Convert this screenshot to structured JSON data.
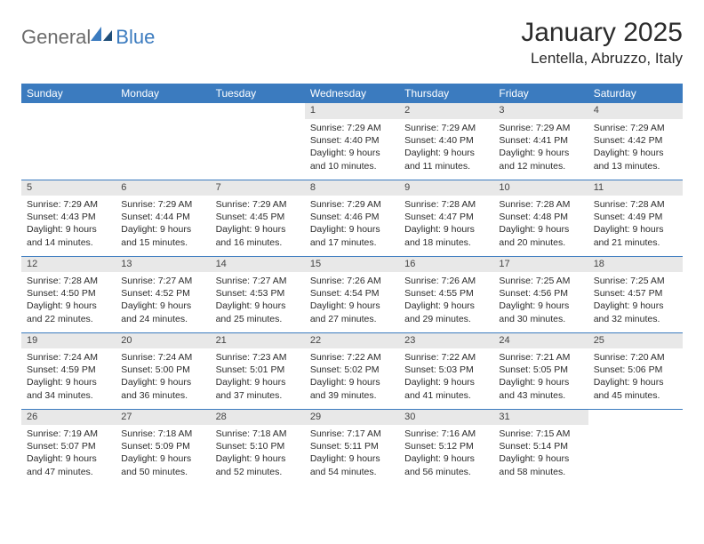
{
  "logo": {
    "text1": "General",
    "text2": "Blue"
  },
  "title": "January 2025",
  "subtitle": "Lentella, Abruzzo, Italy",
  "colors": {
    "header_bg": "#3b7bbf",
    "header_text": "#ffffff",
    "daynum_bg": "#e8e8e8",
    "border": "#3b7bbf",
    "body_text": "#2b2b2b",
    "logo_gray": "#6b6b6b",
    "logo_blue": "#3b7bbf"
  },
  "typography": {
    "title_fontsize": 30,
    "subtitle_fontsize": 17,
    "day_header_fontsize": 12,
    "daynum_fontsize": 11,
    "detail_fontsize": 10.5
  },
  "day_headers": [
    "Sunday",
    "Monday",
    "Tuesday",
    "Wednesday",
    "Thursday",
    "Friday",
    "Saturday"
  ],
  "weeks": [
    {
      "nums": [
        "",
        "",
        "",
        "1",
        "2",
        "3",
        "4"
      ],
      "details": [
        "",
        "",
        "",
        "Sunrise: 7:29 AM\nSunset: 4:40 PM\nDaylight: 9 hours\nand 10 minutes.",
        "Sunrise: 7:29 AM\nSunset: 4:40 PM\nDaylight: 9 hours\nand 11 minutes.",
        "Sunrise: 7:29 AM\nSunset: 4:41 PM\nDaylight: 9 hours\nand 12 minutes.",
        "Sunrise: 7:29 AM\nSunset: 4:42 PM\nDaylight: 9 hours\nand 13 minutes."
      ]
    },
    {
      "nums": [
        "5",
        "6",
        "7",
        "8",
        "9",
        "10",
        "11"
      ],
      "details": [
        "Sunrise: 7:29 AM\nSunset: 4:43 PM\nDaylight: 9 hours\nand 14 minutes.",
        "Sunrise: 7:29 AM\nSunset: 4:44 PM\nDaylight: 9 hours\nand 15 minutes.",
        "Sunrise: 7:29 AM\nSunset: 4:45 PM\nDaylight: 9 hours\nand 16 minutes.",
        "Sunrise: 7:29 AM\nSunset: 4:46 PM\nDaylight: 9 hours\nand 17 minutes.",
        "Sunrise: 7:28 AM\nSunset: 4:47 PM\nDaylight: 9 hours\nand 18 minutes.",
        "Sunrise: 7:28 AM\nSunset: 4:48 PM\nDaylight: 9 hours\nand 20 minutes.",
        "Sunrise: 7:28 AM\nSunset: 4:49 PM\nDaylight: 9 hours\nand 21 minutes."
      ]
    },
    {
      "nums": [
        "12",
        "13",
        "14",
        "15",
        "16",
        "17",
        "18"
      ],
      "details": [
        "Sunrise: 7:28 AM\nSunset: 4:50 PM\nDaylight: 9 hours\nand 22 minutes.",
        "Sunrise: 7:27 AM\nSunset: 4:52 PM\nDaylight: 9 hours\nand 24 minutes.",
        "Sunrise: 7:27 AM\nSunset: 4:53 PM\nDaylight: 9 hours\nand 25 minutes.",
        "Sunrise: 7:26 AM\nSunset: 4:54 PM\nDaylight: 9 hours\nand 27 minutes.",
        "Sunrise: 7:26 AM\nSunset: 4:55 PM\nDaylight: 9 hours\nand 29 minutes.",
        "Sunrise: 7:25 AM\nSunset: 4:56 PM\nDaylight: 9 hours\nand 30 minutes.",
        "Sunrise: 7:25 AM\nSunset: 4:57 PM\nDaylight: 9 hours\nand 32 minutes."
      ]
    },
    {
      "nums": [
        "19",
        "20",
        "21",
        "22",
        "23",
        "24",
        "25"
      ],
      "details": [
        "Sunrise: 7:24 AM\nSunset: 4:59 PM\nDaylight: 9 hours\nand 34 minutes.",
        "Sunrise: 7:24 AM\nSunset: 5:00 PM\nDaylight: 9 hours\nand 36 minutes.",
        "Sunrise: 7:23 AM\nSunset: 5:01 PM\nDaylight: 9 hours\nand 37 minutes.",
        "Sunrise: 7:22 AM\nSunset: 5:02 PM\nDaylight: 9 hours\nand 39 minutes.",
        "Sunrise: 7:22 AM\nSunset: 5:03 PM\nDaylight: 9 hours\nand 41 minutes.",
        "Sunrise: 7:21 AM\nSunset: 5:05 PM\nDaylight: 9 hours\nand 43 minutes.",
        "Sunrise: 7:20 AM\nSunset: 5:06 PM\nDaylight: 9 hours\nand 45 minutes."
      ]
    },
    {
      "nums": [
        "26",
        "27",
        "28",
        "29",
        "30",
        "31",
        ""
      ],
      "details": [
        "Sunrise: 7:19 AM\nSunset: 5:07 PM\nDaylight: 9 hours\nand 47 minutes.",
        "Sunrise: 7:18 AM\nSunset: 5:09 PM\nDaylight: 9 hours\nand 50 minutes.",
        "Sunrise: 7:18 AM\nSunset: 5:10 PM\nDaylight: 9 hours\nand 52 minutes.",
        "Sunrise: 7:17 AM\nSunset: 5:11 PM\nDaylight: 9 hours\nand 54 minutes.",
        "Sunrise: 7:16 AM\nSunset: 5:12 PM\nDaylight: 9 hours\nand 56 minutes.",
        "Sunrise: 7:15 AM\nSunset: 5:14 PM\nDaylight: 9 hours\nand 58 minutes.",
        ""
      ]
    }
  ]
}
